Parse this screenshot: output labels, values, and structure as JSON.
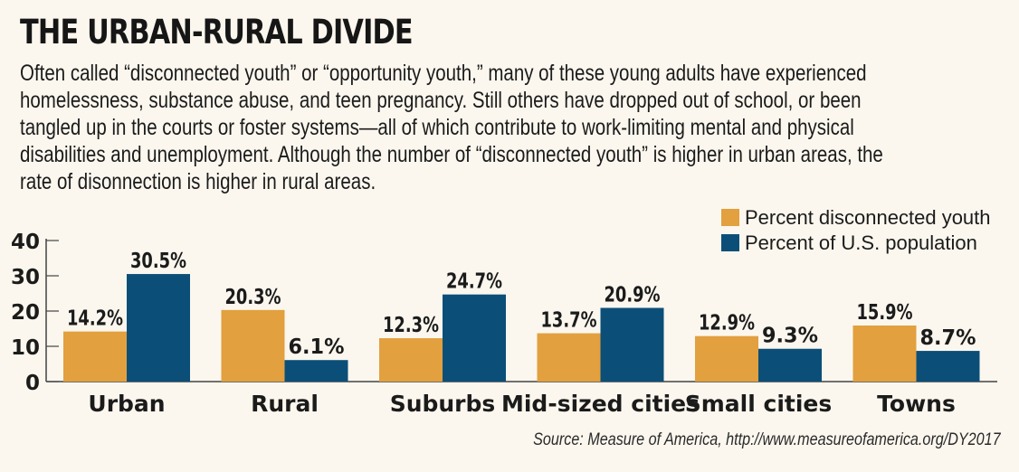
{
  "header": {
    "title": "THE URBAN-RURAL DIVIDE",
    "intro": "Often called “disconnected youth” or “opportunity youth,” many of these young adults have experienced\nhomelessness, substance abuse, and teen pregnancy. Still others have dropped out of school, or been\ntangled up in the courts or foster systems—all of which contribute to work-limiting mental and physical\ndisabilities and unemployment. Although the number of “disconnected youth” is higher in urban areas, the\nrate of disonnection is higher in rural areas."
  },
  "source": "Source: Measure of America, http://www.measureofamerica.org/DY2017",
  "chart_data": {
    "type": "bar",
    "categories": [
      "Urban",
      "Rural",
      "Suburbs",
      "Mid-sized cities",
      "Small cities",
      "Towns"
    ],
    "series": [
      {
        "name": "Percent disconnected youth",
        "color": "#e2a03f",
        "values": [
          14.2,
          20.3,
          12.3,
          13.7,
          12.9,
          15.9
        ],
        "labels": [
          "14.2%",
          "20.3%",
          "12.3%",
          "13.7%",
          "12.9%",
          "15.9%"
        ]
      },
      {
        "name": "Percent of U.S. population",
        "color": "#0b4f78",
        "values": [
          30.5,
          6.1,
          24.7,
          20.9,
          9.3,
          8.7
        ],
        "labels": [
          "30.5%",
          "6.1%",
          "24.7%",
          "20.9%",
          "9.3%",
          "8.7%"
        ]
      }
    ],
    "yticks": [
      0,
      10,
      20,
      30,
      40
    ],
    "ylim": [
      0,
      40
    ],
    "grid": false,
    "legend_position": "top-right"
  }
}
